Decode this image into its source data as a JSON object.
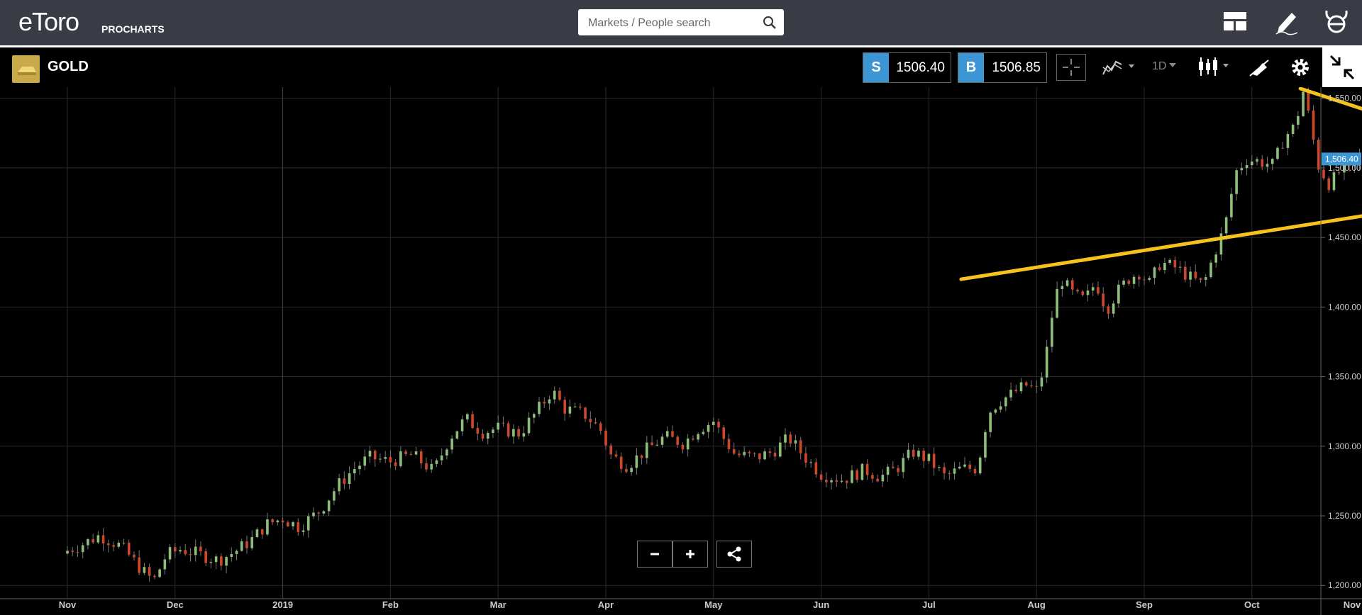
{
  "app": {
    "logo_text": "eToro",
    "logo_sub": "PROCHARTS"
  },
  "search": {
    "placeholder": "Markets / People search"
  },
  "header_icons": [
    "layout-icon",
    "edit-pencil-icon",
    "etoro-bull-icon"
  ],
  "instrument": {
    "name": "GOLD"
  },
  "prices": {
    "sell_label": "S",
    "sell": "1506.40",
    "buy_label": "B",
    "buy": "1506.85"
  },
  "toolbar": {
    "timeframe": "1D",
    "icons": [
      "crosshair-icon",
      "indicators-icon",
      "candles-icon",
      "drawing-icon",
      "settings-icon",
      "fullscreen-exit-icon"
    ]
  },
  "colors": {
    "up": "#8ebf7a",
    "down": "#d0462a",
    "trend_line": "#f6c21c",
    "price_badge": "#3c96d4",
    "accent": "#3c96d4"
  },
  "zoom": {
    "minus": "−",
    "plus": "+"
  },
  "chart_data": {
    "type": "candlestick",
    "instrument": "GOLD",
    "x_ticks": [
      "Nov",
      "Dec",
      "2019",
      "Feb",
      "Mar",
      "Apr",
      "May",
      "Jun",
      "Jul",
      "Aug",
      "Sep",
      "Oct",
      "Nov"
    ],
    "y_ticks": [
      "1,200.00",
      "1,250.00",
      "1,300.00",
      "1,350.00",
      "1,400.00",
      "1,450.00",
      "1,500.00",
      "1,550.00"
    ],
    "ylim": [
      1193,
      1558
    ],
    "current_price_label": "1,506.40",
    "current_price": 1506.4,
    "closes": [
      {
        "m": 0.0,
        "v": 1225
      },
      {
        "m": 0.15,
        "v": 1230
      },
      {
        "m": 0.3,
        "v": 1236
      },
      {
        "m": 0.5,
        "v": 1228
      },
      {
        "m": 0.68,
        "v": 1212
      },
      {
        "m": 0.8,
        "v": 1203
      },
      {
        "m": 0.92,
        "v": 1222
      },
      {
        "m": 1.05,
        "v": 1226
      },
      {
        "m": 1.2,
        "v": 1223
      },
      {
        "m": 1.4,
        "v": 1218
      },
      {
        "m": 1.55,
        "v": 1224
      },
      {
        "m": 1.7,
        "v": 1232
      },
      {
        "m": 1.85,
        "v": 1244
      },
      {
        "m": 2.0,
        "v": 1248
      },
      {
        "m": 2.15,
        "v": 1242
      },
      {
        "m": 2.35,
        "v": 1254
      },
      {
        "m": 2.5,
        "v": 1271
      },
      {
        "m": 2.65,
        "v": 1283
      },
      {
        "m": 2.8,
        "v": 1292
      },
      {
        "m": 3.0,
        "v": 1289
      },
      {
        "m": 3.2,
        "v": 1294
      },
      {
        "m": 3.4,
        "v": 1282
      },
      {
        "m": 3.55,
        "v": 1306
      },
      {
        "m": 3.7,
        "v": 1320
      },
      {
        "m": 3.85,
        "v": 1310
      },
      {
        "m": 4.0,
        "v": 1313
      },
      {
        "m": 4.2,
        "v": 1309
      },
      {
        "m": 4.35,
        "v": 1324
      },
      {
        "m": 4.5,
        "v": 1340
      },
      {
        "m": 4.62,
        "v": 1327
      },
      {
        "m": 4.8,
        "v": 1323
      },
      {
        "m": 4.95,
        "v": 1312
      },
      {
        "m": 5.05,
        "v": 1293
      },
      {
        "m": 5.2,
        "v": 1286
      },
      {
        "m": 5.35,
        "v": 1296
      },
      {
        "m": 5.55,
        "v": 1307
      },
      {
        "m": 5.72,
        "v": 1302
      },
      {
        "m": 5.85,
        "v": 1312
      },
      {
        "m": 6.0,
        "v": 1318
      },
      {
        "m": 6.1,
        "v": 1305
      },
      {
        "m": 6.2,
        "v": 1294
      },
      {
        "m": 6.4,
        "v": 1292
      },
      {
        "m": 6.55,
        "v": 1296
      },
      {
        "m": 6.7,
        "v": 1306
      },
      {
        "m": 6.85,
        "v": 1292
      },
      {
        "m": 7.0,
        "v": 1280
      },
      {
        "m": 7.2,
        "v": 1276
      },
      {
        "m": 7.4,
        "v": 1283
      },
      {
        "m": 7.55,
        "v": 1278
      },
      {
        "m": 7.7,
        "v": 1284
      },
      {
        "m": 7.85,
        "v": 1296
      },
      {
        "m": 8.0,
        "v": 1290
      },
      {
        "m": 8.15,
        "v": 1278
      },
      {
        "m": 8.3,
        "v": 1284
      },
      {
        "m": 8.45,
        "v": 1284
      },
      {
        "m": 8.55,
        "v": 1324
      },
      {
        "m": 8.65,
        "v": 1332
      },
      {
        "m": 8.78,
        "v": 1338
      },
      {
        "m": 8.9,
        "v": 1344
      },
      {
        "m": 9.0,
        "v": 1340
      },
      {
        "m": 9.07,
        "v": 1356
      },
      {
        "m": 9.15,
        "v": 1397
      },
      {
        "m": 9.22,
        "v": 1421
      },
      {
        "m": 9.35,
        "v": 1408
      },
      {
        "m": 9.45,
        "v": 1405
      },
      {
        "m": 9.55,
        "v": 1418
      },
      {
        "m": 9.65,
        "v": 1398
      },
      {
        "m": 9.75,
        "v": 1411
      },
      {
        "m": 9.85,
        "v": 1420
      },
      {
        "m": 9.95,
        "v": 1425
      },
      {
        "m": 10.05,
        "v": 1417
      },
      {
        "m": 10.15,
        "v": 1432
      },
      {
        "m": 10.3,
        "v": 1428
      },
      {
        "m": 10.45,
        "v": 1420
      },
      {
        "m": 10.55,
        "v": 1416
      },
      {
        "m": 10.65,
        "v": 1438
      },
      {
        "m": 10.75,
        "v": 1458
      },
      {
        "m": 10.85,
        "v": 1497
      },
      {
        "m": 10.95,
        "v": 1506
      },
      {
        "m": 11.05,
        "v": 1505
      },
      {
        "m": 11.2,
        "v": 1502
      },
      {
        "m": 11.3,
        "v": 1522
      },
      {
        "m": 11.4,
        "v": 1530
      },
      {
        "m": 11.48,
        "v": 1556
      },
      {
        "m": 11.55,
        "v": 1528
      },
      {
        "m": 11.62,
        "v": 1501
      },
      {
        "m": 11.72,
        "v": 1488
      },
      {
        "m": 11.82,
        "v": 1498
      },
      {
        "m": 11.92,
        "v": 1497
      },
      {
        "m": 12.0,
        "v": 1508
      },
      {
        "m": 12.1,
        "v": 1524
      },
      {
        "m": 12.18,
        "v": 1508
      },
      {
        "m": 12.28,
        "v": 1498
      },
      {
        "m": 12.38,
        "v": 1476
      },
      {
        "m": 12.45,
        "v": 1480
      },
      {
        "m": 12.52,
        "v": 1488
      },
      {
        "m": 12.6,
        "v": 1505
      },
      {
        "m": 12.7,
        "v": 1510
      },
      {
        "m": 12.8,
        "v": 1496
      },
      {
        "m": 12.9,
        "v": 1492
      },
      {
        "m": 13.0,
        "v": 1490
      },
      {
        "m": 13.1,
        "v": 1486
      },
      {
        "m": 13.2,
        "v": 1498
      },
      {
        "m": 13.28,
        "v": 1506.4
      }
    ],
    "trend_lines": [
      {
        "from": {
          "m": 8.3,
          "v": 1420
        },
        "to": {
          "m": 13.55,
          "v": 1484
        }
      },
      {
        "from": {
          "m": 11.45,
          "v": 1557
        },
        "to": {
          "m": 13.5,
          "v": 1505
        }
      }
    ]
  }
}
